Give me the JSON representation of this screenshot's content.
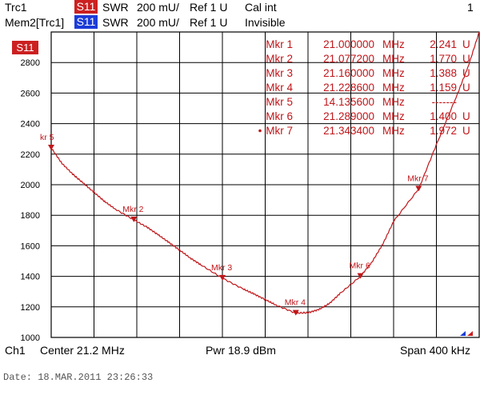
{
  "header": {
    "trace1": {
      "name": "Trc1",
      "param": "S11",
      "format": "SWR",
      "scale": "200 mU/",
      "ref": "Ref 1 U",
      "status": "Cal int",
      "color": "#cc2020"
    },
    "trace2": {
      "name": "Mem2[Trc1]",
      "param": "S11",
      "format": "SWR",
      "scale": "200 mU/",
      "ref": "Ref 1 U",
      "status": "Invisible",
      "color": "#1c3cd8"
    },
    "channel_number": "1"
  },
  "footer": {
    "channel": "Ch1",
    "center": "Center  21.2 MHz",
    "power": "Pwr  18.9 dBm",
    "span": "Span  400 kHz",
    "date": "Date: 18.MAR.2011   23:26:33"
  },
  "chart_data": {
    "type": "line",
    "trace_badge": "S11",
    "x_unit": "MHz",
    "xlim": [
      21.0,
      21.4
    ],
    "ylim": [
      1000,
      3000
    ],
    "y_ticks": [
      "1000",
      "1200",
      "1400",
      "1600",
      "1800",
      "2000",
      "2200",
      "2400",
      "2600",
      "2800"
    ],
    "grid": true,
    "line_color": "#c0161a",
    "series": [
      {
        "x": [
          21.0,
          21.01,
          21.02,
          21.03,
          21.04,
          21.05,
          21.06,
          21.0772,
          21.09,
          21.1,
          21.11,
          21.12,
          21.13,
          21.14,
          21.16,
          21.18,
          21.19,
          21.2,
          21.21,
          21.2286,
          21.24,
          21.25,
          21.26,
          21.27,
          21.289,
          21.3,
          21.31,
          21.32,
          21.3434,
          21.36,
          21.38,
          21.39,
          21.4
        ],
        "y": [
          2241,
          2140,
          2070,
          2010,
          1950,
          1890,
          1840,
          1770,
          1720,
          1672,
          1622,
          1572,
          1520,
          1475,
          1388,
          1315,
          1283,
          1248,
          1212,
          1159,
          1162,
          1182,
          1222,
          1288,
          1400,
          1496,
          1612,
          1760,
          1972,
          2262,
          2600,
          2780,
          3000
        ]
      }
    ],
    "markers": [
      {
        "label": "Mkr 1",
        "freq": "21.000000",
        "unit": "MHz",
        "value": "2.241",
        "value_unit": "U",
        "x": 21.0,
        "y": 2241,
        "on_plot": false
      },
      {
        "label": "Mkr 2",
        "freq": "21.077200",
        "unit": "MHz",
        "value": "1.770",
        "value_unit": "U",
        "x": 21.0772,
        "y": 1770,
        "on_plot": true,
        "plot_label": "Mkr 2"
      },
      {
        "label": "Mkr 3",
        "freq": "21.160000",
        "unit": "MHz",
        "value": "1.388",
        "value_unit": "U",
        "x": 21.16,
        "y": 1388,
        "on_plot": true,
        "plot_label": "Mkr 3"
      },
      {
        "label": "Mkr 4",
        "freq": "21.228600",
        "unit": "MHz",
        "value": "1.159",
        "value_unit": "U",
        "x": 21.2286,
        "y": 1159,
        "on_plot": true,
        "plot_label": "Mkr 4"
      },
      {
        "label": "Mkr 5",
        "freq": "14.135600",
        "unit": "MHz",
        "value": "-------",
        "value_unit": "",
        "x": 21.0,
        "y": 2241,
        "on_plot": true,
        "plot_label": "kr 5"
      },
      {
        "label": "Mkr 6",
        "freq": "21.289000",
        "unit": "MHz",
        "value": "1.400",
        "value_unit": "U",
        "x": 21.289,
        "y": 1400,
        "on_plot": true,
        "plot_label": "Mkr 6"
      },
      {
        "label": "Mkr 7",
        "freq": "21.343400",
        "unit": "MHz",
        "value": "1.972",
        "value_unit": "U",
        "x": 21.3434,
        "y": 1972,
        "on_plot": true,
        "plot_label": "Mkr 7",
        "active": true
      }
    ]
  }
}
